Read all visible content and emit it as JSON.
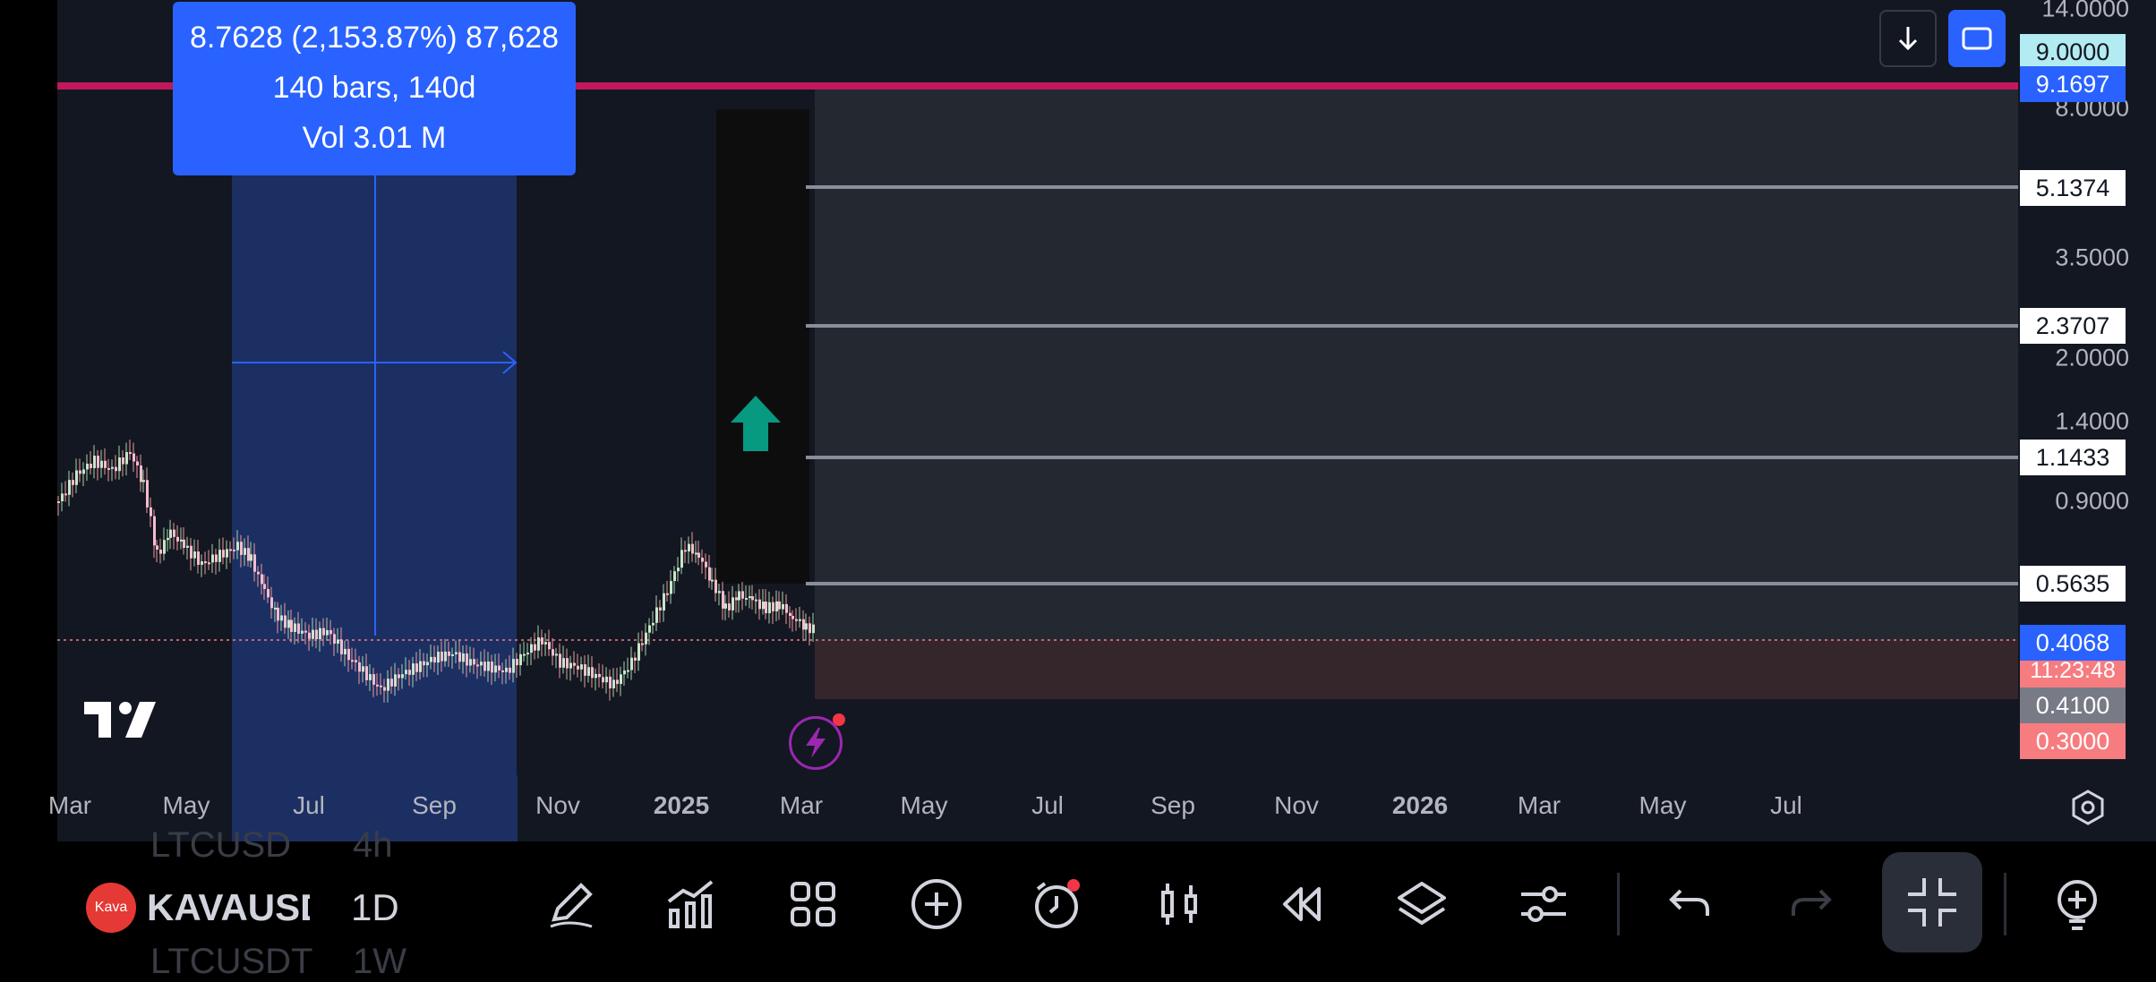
{
  "measure_tooltip": {
    "line1": "8.7628 (2,153.87%) 87,628",
    "line2": "140 bars, 140d",
    "line3": "Vol 3.01 M"
  },
  "price_axis": {
    "labels": [
      "14.0000",
      "8.0000",
      "3.5000",
      "2.0000",
      "1.4000",
      "0.9000"
    ],
    "tags": {
      "tp_partial": "9.0000",
      "target": "9.1697",
      "level1": "5.1374",
      "level2": "2.3707",
      "level3": "1.1433",
      "level4": "0.5635",
      "last_price": "0.4068",
      "countdown": "11:23:48",
      "entry": "0.4100",
      "stop": "0.3000"
    }
  },
  "time_axis": {
    "labels": [
      "Mar",
      "May",
      "Jul",
      "Sep",
      "Nov",
      "2025",
      "Mar",
      "May",
      "Jul",
      "Sep",
      "Nov",
      "2026",
      "Mar",
      "May",
      "Jul"
    ]
  },
  "symbol_bar": {
    "symbol_badge": "Kava",
    "symbol": "KAVAUSD",
    "interval": "1D",
    "ghost_symbol_above": "LTCUSD",
    "ghost_interval_above": "4h",
    "ghost_symbol_below": "LTCUSDT",
    "ghost_interval_below": "1W"
  },
  "logo_text": "17",
  "colors": {
    "background": "#131722",
    "accent_blue": "#2962ff",
    "target_line": "#d81b60",
    "stop_red": "#f77c80",
    "up_green": "#089981"
  }
}
